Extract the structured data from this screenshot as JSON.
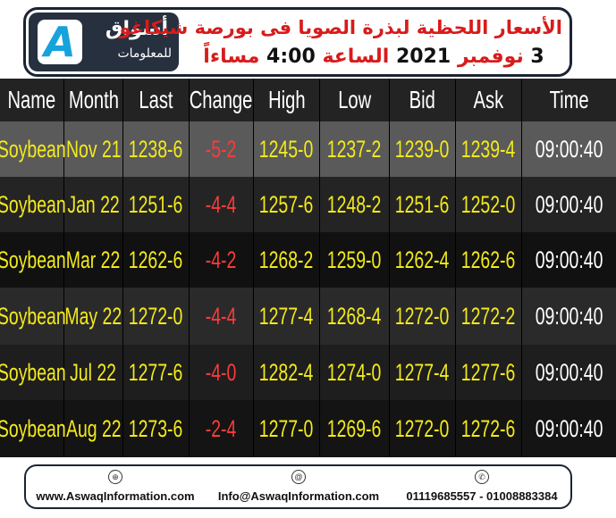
{
  "header": {
    "logo": {
      "name": "أسواق",
      "sub": "للمعلومات"
    },
    "title_line1": "الأسعار اللحظية لبذرة الصويا فى بورصة شيكاغو",
    "title_line2_day": "3",
    "title_line2_month": "نوفمبر",
    "title_line2_year": "2021",
    "title_line2_at": "الساعة",
    "title_line2_time": "4:00",
    "title_line2_period": "مساءاً"
  },
  "table": {
    "headers": [
      "Name",
      "Month",
      "Last",
      "Change",
      "High",
      "Low",
      "Bid",
      "Ask",
      "Time"
    ],
    "rows": [
      {
        "name": "Soybean",
        "month": "Nov 21",
        "last": "1238-6",
        "change": "-5-2",
        "high": "1245-0",
        "low": "1237-2",
        "bid": "1239-0",
        "ask": "1239-4",
        "time": "09:00:40"
      },
      {
        "name": "Soybean",
        "month": "Jan 22",
        "last": "1251-6",
        "change": "-4-4",
        "high": "1257-6",
        "low": "1248-2",
        "bid": "1251-6",
        "ask": "1252-0",
        "time": "09:00:40"
      },
      {
        "name": "Soybean",
        "month": "Mar 22",
        "last": "1262-6",
        "change": "-4-2",
        "high": "1268-2",
        "low": "1259-0",
        "bid": "1262-4",
        "ask": "1262-6",
        "time": "09:00:40"
      },
      {
        "name": "Soybean",
        "month": "May 22",
        "last": "1272-0",
        "change": "-4-4",
        "high": "1277-4",
        "low": "1268-4",
        "bid": "1272-0",
        "ask": "1272-2",
        "time": "09:00:40"
      },
      {
        "name": "Soybean",
        "month": "Jul 22",
        "last": "1277-6",
        "change": "-4-0",
        "high": "1282-4",
        "low": "1274-0",
        "bid": "1277-4",
        "ask": "1277-6",
        "time": "09:00:40"
      },
      {
        "name": "Soybean",
        "month": "Aug 22",
        "last": "1273-6",
        "change": "-2-4",
        "high": "1277-0",
        "low": "1269-6",
        "bid": "1272-0",
        "ask": "1272-6",
        "time": "09:00:40"
      }
    ]
  },
  "footer": {
    "website": "www.AswaqInformation.com",
    "email": "Info@AswaqInformation.com",
    "phones": "01119685557 - 01008883384"
  },
  "colors": {
    "row_shades": [
      "#5a5a5a",
      "#242424",
      "#111111",
      "#2a2a2a",
      "#1e1e1e",
      "#141414"
    ],
    "value_yellow": "#f3ea1b",
    "change_red": "#ff3a3a",
    "title_red": "#d81b1b",
    "logo_blue": "#16a3dc"
  }
}
